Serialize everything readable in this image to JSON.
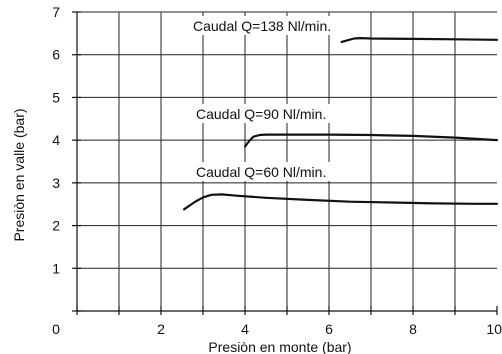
{
  "chart_data": {
    "type": "line",
    "title": "",
    "xlabel": "Presiòn en monte  (bar)",
    "ylabel": "Presiòn en valle  (bar)",
    "xlim": [
      0,
      10
    ],
    "ylim": [
      0,
      7
    ],
    "x_ticks": [
      0,
      2,
      4,
      6,
      8,
      10
    ],
    "x_tick_labels": [
      "0",
      "2",
      "4",
      "6",
      "8",
      "10"
    ],
    "y_ticks": [
      1,
      2,
      3,
      4,
      5,
      6,
      7
    ],
    "y_tick_labels": [
      "1",
      "2",
      "3",
      "4",
      "5",
      "6",
      "7"
    ],
    "grid": true,
    "series": [
      {
        "label": "Caudal Q=138 Nl/min.",
        "x": [
          6.3,
          6.45,
          6.6,
          6.75,
          7.0,
          8.0,
          9.0,
          10.0
        ],
        "y": [
          6.3,
          6.34,
          6.38,
          6.39,
          6.38,
          6.37,
          6.36,
          6.35
        ]
      },
      {
        "label": "Caudal Q=90 Nl/min.",
        "x": [
          4.0,
          4.1,
          4.2,
          4.35,
          4.5,
          5.0,
          6.0,
          7.0,
          8.0,
          9.0,
          9.5,
          10.0
        ],
        "y": [
          3.85,
          3.98,
          4.08,
          4.12,
          4.13,
          4.13,
          4.13,
          4.12,
          4.1,
          4.06,
          4.03,
          4.0
        ]
      },
      {
        "label": "Caudal Q=60 Nl/min.",
        "x": [
          2.55,
          2.8,
          3.0,
          3.2,
          3.45,
          3.8,
          4.5,
          5.5,
          6.5,
          7.5,
          8.5,
          9.5,
          10.0
        ],
        "y": [
          2.38,
          2.55,
          2.66,
          2.72,
          2.73,
          2.7,
          2.65,
          2.6,
          2.56,
          2.54,
          2.52,
          2.51,
          2.51
        ]
      }
    ]
  }
}
